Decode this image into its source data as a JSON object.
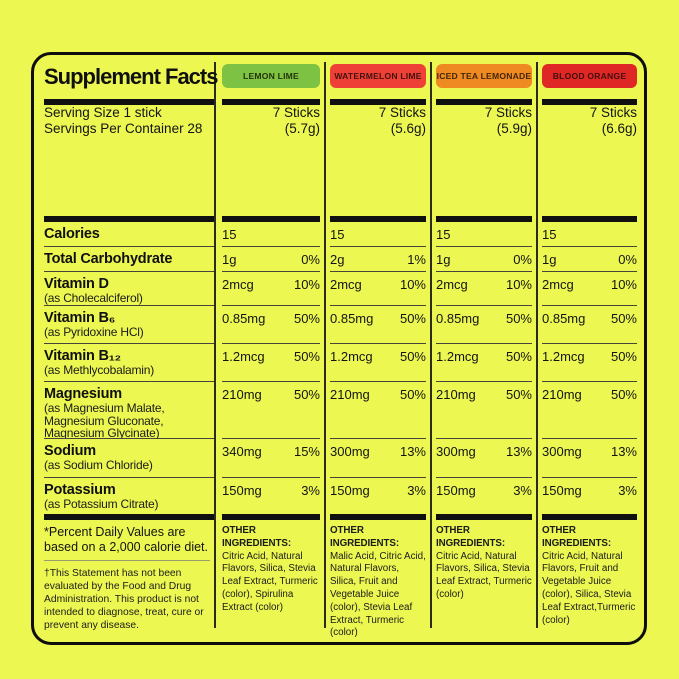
{
  "colors": {
    "background": "#ECF751",
    "panel_border": "#0e0e0e",
    "lemon_lime_badge": "#7DC242",
    "watermelon_lime_badge": "#EE4036",
    "iced_tea_lemonade_badge": "#EF8A23",
    "blood_orange_badge": "#DF2826"
  },
  "panel": {
    "title": "Supplement Facts",
    "serving_size": "Serving Size 1 stick",
    "servings_per_container": "Servings Per Container 28",
    "footnote_dv": "*Percent Daily Values are based on a 2,000 calorie diet.",
    "footnote_fda": "†This Statement has not been evaluated by the Food and Drug Administration. This product is not intended to diagnose, treat, cure or prevent any disease."
  },
  "nutrients": [
    {
      "name": "Calories",
      "sub": ""
    },
    {
      "name": "Total Carbohydrate",
      "sub": ""
    },
    {
      "name": "Vitamin D",
      "sub": "(as Cholecalciferol)"
    },
    {
      "name": "Vitamin B₆",
      "sub": "(as Pyridoxine HCl)"
    },
    {
      "name": "Vitamin B₁₂",
      "sub": "(as Methlycobalamin)"
    },
    {
      "name": "Magnesium",
      "sub": "(as Magnesium Malate, Magnesium Gluconate, Magnesium Glycinate)"
    },
    {
      "name": "Sodium",
      "sub": "(as Sodium Chloride)"
    },
    {
      "name": "Potassium",
      "sub": "(as Potassium Citrate)"
    }
  ],
  "other_ingredients_heading": "OTHER INGREDIENTS:",
  "flavors": [
    {
      "name": "LEMON LIME",
      "sticks": "7 Sticks",
      "weight": "(5.7g)",
      "values": [
        {
          "amount": "15",
          "dv": ""
        },
        {
          "amount": "1g",
          "dv": "0%"
        },
        {
          "amount": "2mcg",
          "dv": "10%"
        },
        {
          "amount": "0.85mg",
          "dv": "50%"
        },
        {
          "amount": "1.2mcg",
          "dv": "50%"
        },
        {
          "amount": "210mg",
          "dv": "50%"
        },
        {
          "amount": "340mg",
          "dv": "15%"
        },
        {
          "amount": "150mg",
          "dv": "3%"
        }
      ],
      "other_ingredients": "Citric Acid, Natural Flavors, Silica, Stevia Leaf Extract, Turmeric (color), Spirulina Extract (color)"
    },
    {
      "name": "WATERMELON LIME",
      "sticks": "7 Sticks",
      "weight": "(5.6g)",
      "values": [
        {
          "amount": "15",
          "dv": ""
        },
        {
          "amount": "2g",
          "dv": "1%"
        },
        {
          "amount": "2mcg",
          "dv": "10%"
        },
        {
          "amount": "0.85mg",
          "dv": "50%"
        },
        {
          "amount": "1.2mcg",
          "dv": "50%"
        },
        {
          "amount": "210mg",
          "dv": "50%"
        },
        {
          "amount": "300mg",
          "dv": "13%"
        },
        {
          "amount": "150mg",
          "dv": "3%"
        }
      ],
      "other_ingredients": "Malic Acid, Citric Acid, Natural Flavors, Silica, Fruit and Vegetable Juice (color), Stevia Leaf Extract, Turmeric (color)"
    },
    {
      "name": "ICED TEA LEMONADE",
      "sticks": "7 Sticks",
      "weight": "(5.9g)",
      "values": [
        {
          "amount": "15",
          "dv": ""
        },
        {
          "amount": "1g",
          "dv": "0%"
        },
        {
          "amount": "2mcg",
          "dv": "10%"
        },
        {
          "amount": "0.85mg",
          "dv": "50%"
        },
        {
          "amount": "1.2mcg",
          "dv": "50%"
        },
        {
          "amount": "210mg",
          "dv": "50%"
        },
        {
          "amount": "300mg",
          "dv": "13%"
        },
        {
          "amount": "150mg",
          "dv": "3%"
        }
      ],
      "other_ingredients": "Citric Acid, Natural Flavors, Silica, Stevia Leaf Extract, Turmeric (color)"
    },
    {
      "name": "BLOOD ORANGE",
      "sticks": "7 Sticks",
      "weight": "(6.6g)",
      "values": [
        {
          "amount": "15",
          "dv": ""
        },
        {
          "amount": "1g",
          "dv": "0%"
        },
        {
          "amount": "2mcg",
          "dv": "10%"
        },
        {
          "amount": "0.85mg",
          "dv": "50%"
        },
        {
          "amount": "1.2mcg",
          "dv": "50%"
        },
        {
          "amount": "210mg",
          "dv": "50%"
        },
        {
          "amount": "300mg",
          "dv": "13%"
        },
        {
          "amount": "150mg",
          "dv": "3%"
        }
      ],
      "other_ingredients": "Citric Acid, Natural Flavors, Fruit and Vegetable Juice (color), Silica, Stevia Leaf Extract,Turmeric (color)"
    }
  ]
}
